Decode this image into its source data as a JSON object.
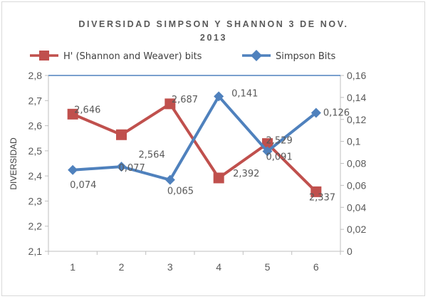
{
  "chart_data": {
    "type": "line",
    "title_lines": [
      "DIVERSIDAD SIMPSON Y SHANNON 3 DE NOV.",
      "2013"
    ],
    "ylabel": "DIVERSIDAD",
    "categories": [
      "1",
      "2",
      "3",
      "4",
      "5",
      "6"
    ],
    "y_left": {
      "min": 2.1,
      "max": 2.8,
      "step": 0.1,
      "ticks": [
        "2,1",
        "2,2",
        "2,3",
        "2,4",
        "2,5",
        "2,6",
        "2,7",
        "2,8"
      ]
    },
    "y_right": {
      "min": 0,
      "max": 0.16,
      "step": 0.02,
      "ticks": [
        "0",
        "0,02",
        "0,04",
        "0,06",
        "0,08",
        "0,1",
        "0,12",
        "0,14",
        "0,16"
      ]
    },
    "legend_position": "top",
    "series": [
      {
        "name": "H' (Shannon and Weaver) bits",
        "axis": "left",
        "color": "#c0504d",
        "marker": "square",
        "values": [
          2.646,
          2.564,
          2.687,
          2.392,
          2.529,
          2.337
        ],
        "labels": [
          "2,646",
          "2,564",
          "2,687",
          "2,392",
          "2,529",
          "2,337"
        ]
      },
      {
        "name": "Simpson Bits",
        "axis": "right",
        "color": "#4f81bd",
        "marker": "diamond",
        "values": [
          0.074,
          0.077,
          0.065,
          0.141,
          0.091,
          0.126
        ],
        "labels": [
          "0,074",
          "0,077",
          "0,065",
          "0,141",
          "0,091",
          "0,126"
        ]
      }
    ]
  }
}
